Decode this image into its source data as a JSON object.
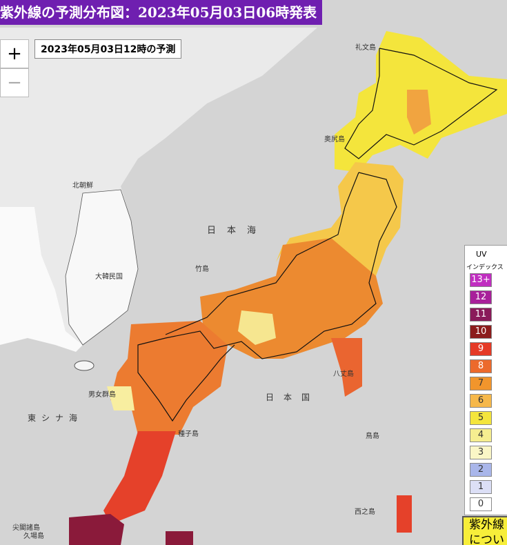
{
  "header": {
    "title": "紫外線の予測分布図：2023年05月03日06時発表",
    "subtitle": "2023年05月03日12時の予測"
  },
  "controls": {
    "zoom_in": "+",
    "zoom_out": "−"
  },
  "legend": {
    "title": "UV",
    "subtitle": "インデックス",
    "levels": [
      {
        "label": "13+",
        "color": "#c02ec0"
      },
      {
        "label": "12",
        "color": "#a8209a"
      },
      {
        "label": "11",
        "color": "#8a1a5a"
      },
      {
        "label": "10",
        "color": "#8c1c1c"
      },
      {
        "label": "9",
        "color": "#e53a26"
      },
      {
        "label": "8",
        "color": "#ec6a2c"
      },
      {
        "label": "7",
        "color": "#f1952c"
      },
      {
        "label": "6",
        "color": "#f6b84a"
      },
      {
        "label": "5",
        "color": "#f4e53c"
      },
      {
        "label": "4",
        "color": "#f6ee90"
      },
      {
        "label": "3",
        "color": "#faf6c6"
      },
      {
        "label": "2",
        "color": "#a9b6ea"
      },
      {
        "label": "1",
        "color": "#dcdff6"
      },
      {
        "label": "0",
        "color": "#ffffff"
      }
    ]
  },
  "map_labels": [
    "北朝鮮",
    "大韓民国",
    "日本海",
    "竹島",
    "東シナ海",
    "日本国",
    "八丈島",
    "鳥島",
    "西之島",
    "尖閣諸島",
    "久場島",
    "種子島",
    "男女群島",
    "礼文島",
    "奥尻島"
  ],
  "info_button": [
    "紫外線",
    "につい"
  ]
}
